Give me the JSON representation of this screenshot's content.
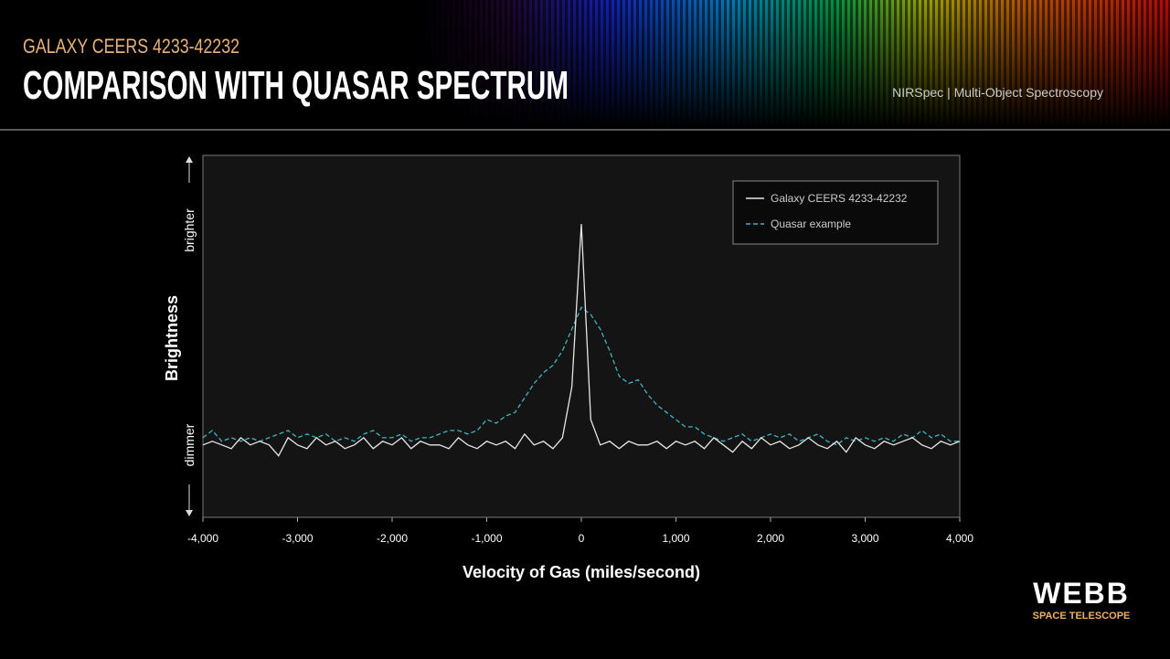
{
  "header": {
    "kicker": "GALAXY CEERS 4233-42232",
    "title": "COMPARISON WITH QUASAR SPECTRUM",
    "instrument": "NIRSpec | Multi-Object Spectroscopy"
  },
  "logo": {
    "name": "WEBB",
    "tagline": "SPACE TELESCOPE"
  },
  "chart_data": {
    "type": "line",
    "x_label": "Velocity of Gas (miles/second)",
    "y_label": "Brightness",
    "y_high_label": "brighter",
    "y_low_label": "dimmer",
    "xlim": [
      -4000,
      4000
    ],
    "xticks": [
      {
        "value": -4000,
        "label": "-4,000"
      },
      {
        "value": -3000,
        "label": "-3,000"
      },
      {
        "value": -2000,
        "label": "-2,000"
      },
      {
        "value": -1000,
        "label": "-1,000"
      },
      0,
      {
        "value": 1000,
        "label": "1,000"
      },
      {
        "value": 2000,
        "label": "2,000"
      },
      {
        "value": 3000,
        "label": "3,000"
      },
      {
        "value": 4000,
        "label": "4,000"
      }
    ],
    "ylim": [
      0,
      100
    ],
    "grid": false,
    "legend": "upper right",
    "x": [
      -4000,
      -3900,
      -3800,
      -3700,
      -3600,
      -3500,
      -3400,
      -3300,
      -3200,
      -3100,
      -3000,
      -2900,
      -2800,
      -2700,
      -2600,
      -2500,
      -2400,
      -2300,
      -2200,
      -2100,
      -2000,
      -1900,
      -1800,
      -1700,
      -1600,
      -1500,
      -1400,
      -1300,
      -1200,
      -1100,
      -1000,
      -900,
      -800,
      -700,
      -600,
      -500,
      -400,
      -300,
      -200,
      -100,
      0,
      100,
      200,
      300,
      400,
      500,
      600,
      700,
      800,
      900,
      1000,
      1100,
      1200,
      1300,
      1400,
      1500,
      1600,
      1700,
      1800,
      1900,
      2000,
      2100,
      2200,
      2300,
      2400,
      2500,
      2600,
      2700,
      2800,
      2900,
      3000,
      3100,
      3200,
      3300,
      3400,
      3500,
      3600,
      3700,
      3800,
      3900,
      4000
    ],
    "series": [
      {
        "name": "Galaxy CEERS 4233-42232",
        "color": "#e6e6e6",
        "style": "solid",
        "values": [
          20,
          21,
          20,
          19,
          22,
          20,
          21,
          20,
          17,
          22,
          20,
          19,
          22,
          20,
          21,
          19,
          20,
          22,
          19,
          21,
          20,
          22,
          19,
          21,
          20,
          20,
          19,
          22,
          20,
          19,
          21,
          20,
          21,
          19,
          23,
          20,
          21,
          19,
          22,
          36,
          81,
          27,
          20,
          21,
          19,
          21,
          20,
          20,
          21,
          19,
          21,
          20,
          21,
          19,
          22,
          20,
          18,
          21,
          19,
          22,
          20,
          21,
          19,
          20,
          22,
          20,
          19,
          21,
          18,
          22,
          20,
          19,
          21,
          20,
          21,
          22,
          20,
          19,
          21,
          20,
          21
        ]
      },
      {
        "name": "Quasar example",
        "color": "#3fb4c4",
        "style": "dashed",
        "values": [
          22,
          24,
          21,
          22,
          21,
          22,
          21,
          22,
          23,
          24,
          22,
          23,
          22,
          23,
          21,
          22,
          21,
          23,
          24,
          22,
          22,
          23,
          21,
          22,
          22,
          23,
          24,
          24,
          23,
          24,
          27,
          26,
          28,
          29,
          33,
          37,
          40,
          42,
          46,
          52,
          58,
          56,
          52,
          46,
          39,
          37,
          38,
          34,
          31,
          29,
          27,
          25,
          25,
          23,
          22,
          21,
          22,
          23,
          21,
          22,
          23,
          22,
          23,
          21,
          22,
          23,
          21,
          20,
          22,
          21,
          22,
          21,
          22,
          21,
          23,
          22,
          24,
          22,
          23,
          21,
          21
        ]
      }
    ]
  }
}
